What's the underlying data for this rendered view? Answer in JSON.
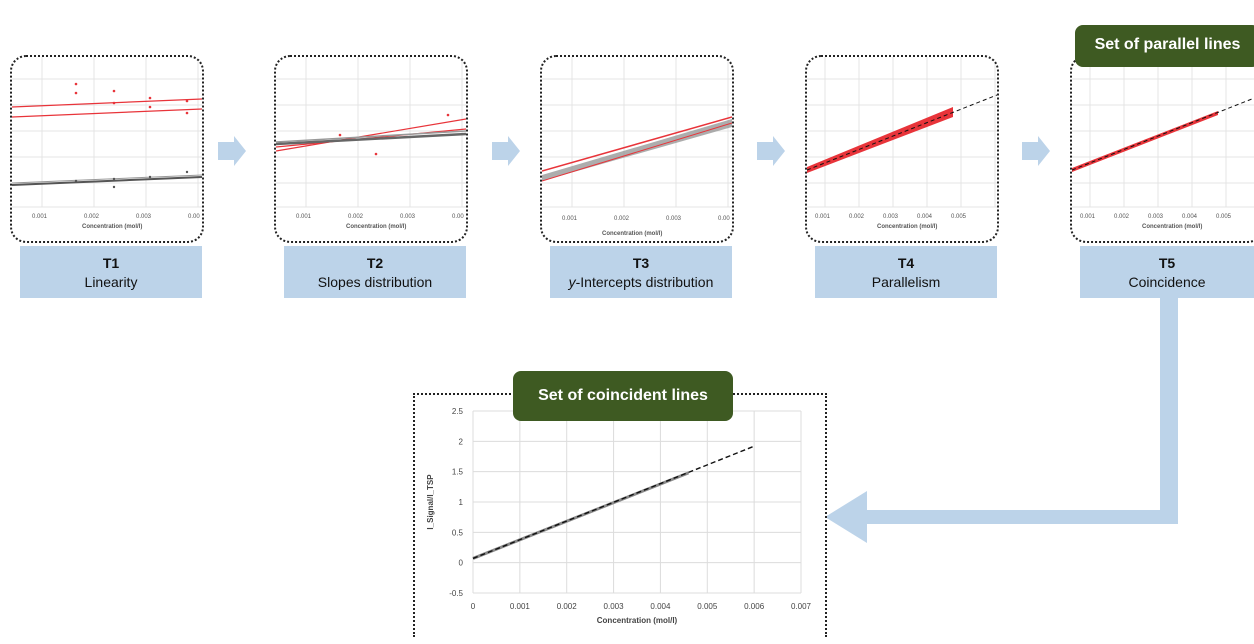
{
  "steps": [
    {
      "code": "T1",
      "name": "Linearity",
      "italic_prefix": ""
    },
    {
      "code": "T2",
      "name": "Slopes distribution",
      "italic_prefix": ""
    },
    {
      "code": "T3",
      "name": "-Intercepts distribution",
      "italic_prefix": "y"
    },
    {
      "code": "T4",
      "name": "Parallelism",
      "italic_prefix": ""
    },
    {
      "code": "T5",
      "name": "Coincidence",
      "italic_prefix": ""
    }
  ],
  "mini_charts": [
    {
      "xlabel": "Concentration (mol/l)",
      "ticks": [
        "0.001",
        "0.002",
        "0.003",
        "0.00"
      ]
    },
    {
      "xlabel": "Concentration (mol/l)",
      "ticks": [
        "0.001",
        "0.002",
        "0.003",
        "0.00"
      ]
    },
    {
      "xlabel": "Concentration (mol/l)",
      "ticks": [
        "0.001",
        "0.002",
        "0.003",
        "0.00"
      ]
    },
    {
      "xlabel": "Concentration (mol/l)",
      "ticks": [
        "0.001",
        "0.002",
        "0.003",
        "0.004",
        "0.005"
      ]
    },
    {
      "xlabel": "Concentration (mol/l)",
      "ticks": [
        "0.001",
        "0.002",
        "0.003",
        "0.004",
        "0.005"
      ]
    }
  ],
  "banners": {
    "parallel": "Set of parallel lines",
    "coincident": "Set of coincident lines"
  },
  "colors": {
    "arrow": "#bcd3e9",
    "banner": "#3e5a22",
    "red": "#e8343a",
    "gray": "#7a7a7a",
    "dashed": "#111111"
  },
  "chart_data": {
    "type": "line",
    "title": "",
    "xlabel": "Concentration (mol/l)",
    "ylabel": "I_Signal/I_TSP",
    "xlim": [
      0,
      0.007
    ],
    "ylim": [
      -0.5,
      2.5
    ],
    "x_ticks": [
      "0",
      "0.001",
      "0.002",
      "0.003",
      "0.004",
      "0.005",
      "0.006",
      "0.007"
    ],
    "y_ticks": [
      "-0.5",
      "0",
      "0.5",
      "1",
      "1.5",
      "2",
      "2.5"
    ],
    "grid": true,
    "series": [
      {
        "style": "solid-gray",
        "x": [
          0,
          0.0046
        ],
        "y": [
          0.07,
          1.48
        ]
      },
      {
        "style": "dashed-black",
        "x": [
          0,
          0.006
        ],
        "y": [
          0.07,
          1.92
        ]
      }
    ]
  }
}
